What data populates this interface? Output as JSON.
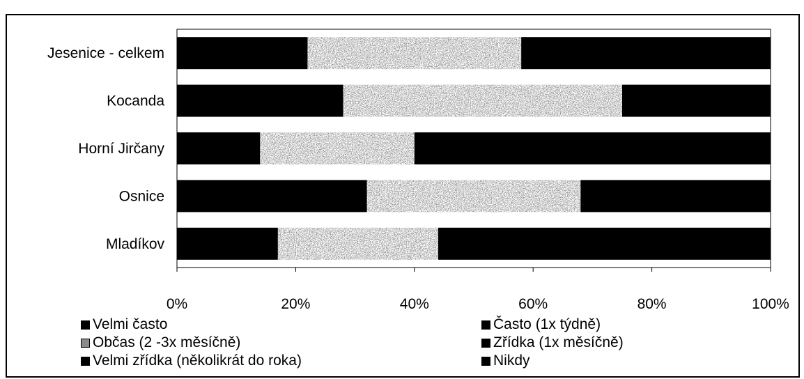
{
  "chart_data": {
    "type": "bar",
    "orientation": "horizontal",
    "stacked": "percent",
    "categories": [
      "Jesenice - celkem",
      "Kocanda",
      "Horní Jirčany",
      "Osnice",
      "Mladíkov"
    ],
    "series": [
      {
        "name": "Velmi často",
        "values": [
          22,
          28,
          14,
          32,
          17
        ],
        "color": "#000000"
      },
      {
        "name": "Často (1x týdně)",
        "values": [
          0,
          0,
          0,
          0,
          0
        ],
        "color": "#000000"
      },
      {
        "name": "Občas (2 -3x měsíčně)",
        "values": [
          36,
          47,
          26,
          36,
          27
        ],
        "color": "#8a8a8a"
      },
      {
        "name": "Zřídka (1x měsíčně)",
        "values": [
          42,
          25,
          60,
          32,
          56
        ],
        "color": "#000000"
      },
      {
        "name": "Velmi zřídka (několikrát do roka)",
        "values": [
          0,
          0,
          0,
          0,
          0
        ],
        "color": "#000000"
      },
      {
        "name": "Nikdy",
        "values": [
          0,
          0,
          0,
          0,
          0
        ],
        "color": "#000000"
      }
    ],
    "xlim": [
      0,
      100
    ],
    "xticks": [
      "0%",
      "20%",
      "40%",
      "60%",
      "80%",
      "100%"
    ],
    "grid": false,
    "legend_position": "bottom"
  }
}
